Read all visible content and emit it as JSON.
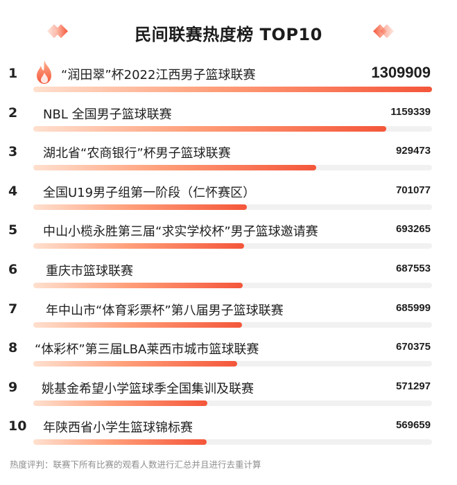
{
  "header": {
    "title": "民间联赛热度榜 TOP10"
  },
  "colors": {
    "accent": "#f4563a",
    "bar_start": "#ffe0cf",
    "track": "#f1f1f1"
  },
  "chart_data": {
    "type": "bar",
    "title": "民间联赛热度榜 TOP10",
    "orientation": "horizontal",
    "ylim": [
      0,
      1309909
    ],
    "categories": [
      "“润田翠”杯2022江西男子篮球联赛",
      "NBL 全国男子篮球联赛",
      "湖北省“农商银行”杯男子篮球联赛",
      "全国U19男子组第一阶段（仁怀赛区）",
      "中山小榄永胜第三届“求实学校杯”男子篮球邀请赛",
      "重庆市篮球联赛",
      "年中山市“体育彩票杯”第八届男子篮球联赛",
      "“体彩杯”第三届LBA莱西市城市篮球联赛",
      "姚基金希望小学篮球季全国集训及联赛",
      "年陕西省小学生篮球锦标赛"
    ],
    "values": [
      1309909,
      1159339,
      929473,
      701077,
      693265,
      687553,
      685999,
      670375,
      571297,
      569659
    ],
    "ranks": [
      "1",
      "2",
      "3",
      "4",
      "5",
      "6",
      "7",
      "8",
      "9",
      "10"
    ]
  },
  "footnote": "热度评判：联赛下所有比赛的观看人数进行汇总并且进行去重计算",
  "icons": {
    "top1": "flame-icon",
    "header_decor": "diamond-chevron-icon"
  }
}
